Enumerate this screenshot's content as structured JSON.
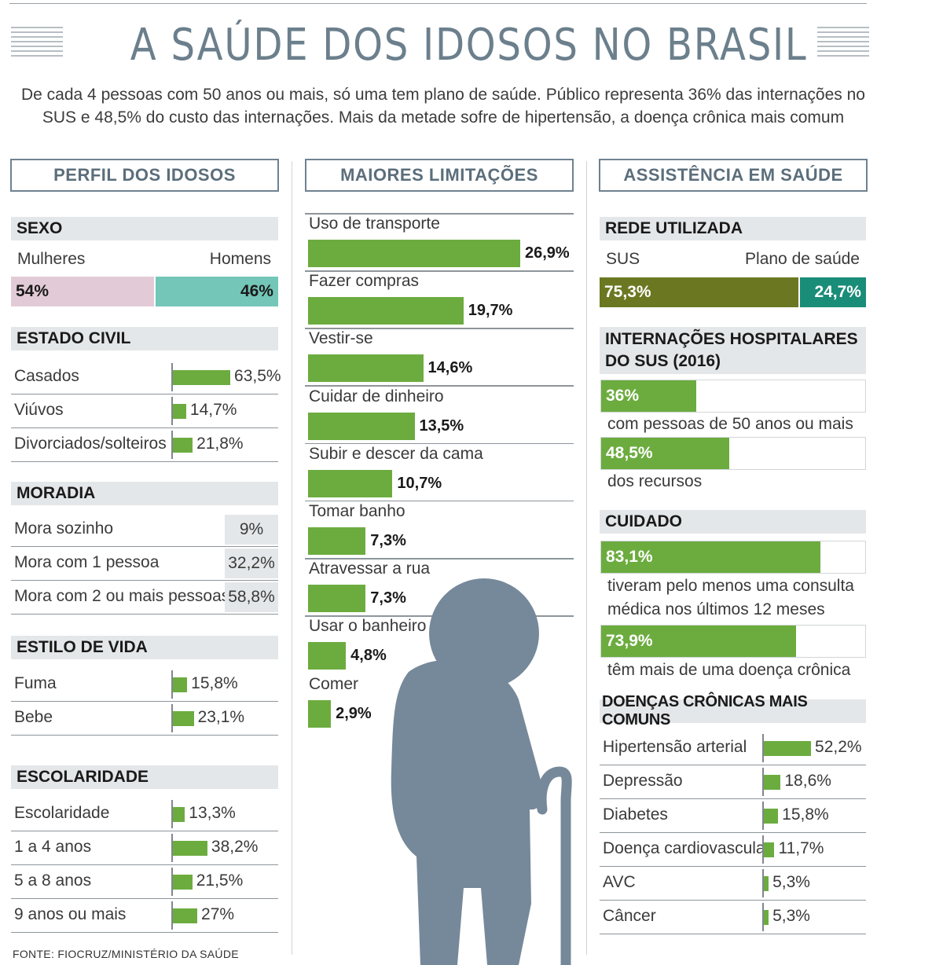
{
  "header": {
    "title": "A SAÚDE DOS IDOSOS NO BRASIL",
    "subtitle_line1": "De cada 4 pessoas com 50 anos ou mais, só uma tem plano de saúde. Público representa 36% das internações no",
    "subtitle_line2": "SUS e 48,5% do custo das internações. Mais da metade sofre de hipertensão, a doença crônica mais comum"
  },
  "sections": {
    "perfil": "PERFIL DOS IDOSOS",
    "limitacoes": "MAIORES LIMITAÇÕES",
    "assistencia": "ASSISTÊNCIA EM SAÚDE"
  },
  "colors": {
    "bar": "#6cac3f",
    "women": "#e2cbd6",
    "men": "#73c6b8",
    "sus": "#6b7821",
    "plano": "#198d78",
    "figure": "#76899a"
  },
  "chart_data": [
    {
      "type": "bar",
      "title": "SEXO",
      "categories": [
        "Mulheres",
        "Homens"
      ],
      "labels": [
        "54%",
        "46%"
      ],
      "values": [
        54,
        46
      ]
    },
    {
      "type": "bar",
      "title": "ESTADO CIVIL",
      "categories": [
        "Casados",
        "Viúvos",
        "Divorciados/solteiros"
      ],
      "labels": [
        "63,5%",
        "14,7%",
        "21,8%"
      ],
      "values": [
        63.5,
        14.7,
        21.8
      ]
    },
    {
      "type": "table",
      "title": "MORADIA",
      "categories": [
        "Mora sozinho",
        "Mora com 1 pessoa",
        "Mora com 2 ou mais pessoas"
      ],
      "labels": [
        "9%",
        "32,2%",
        "58,8%"
      ],
      "values": [
        9,
        32.2,
        58.8
      ]
    },
    {
      "type": "bar",
      "title": "ESTILO DE VIDA",
      "categories": [
        "Fuma",
        "Bebe"
      ],
      "labels": [
        "15,8%",
        "23,1%"
      ],
      "values": [
        15.8,
        23.1
      ]
    },
    {
      "type": "bar",
      "title": "ESCOLARIDADE",
      "categories": [
        "Escolaridade",
        "1 a 4 anos",
        "5 a 8 anos",
        "9 anos ou mais"
      ],
      "labels": [
        "13,3%",
        "38,2%",
        "21,5%",
        "27%"
      ],
      "values": [
        13.3,
        38.2,
        21.5,
        27
      ]
    },
    {
      "type": "bar",
      "title": "MAIORES LIMITAÇÕES",
      "categories": [
        "Uso de transporte",
        "Fazer compras",
        "Vestir-se",
        "Cuidar de dinheiro",
        "Subir e descer da cama",
        "Tomar banho",
        "Atravessar a rua",
        "Usar o banheiro",
        "Comer"
      ],
      "labels": [
        "26,9%",
        "19,7%",
        "14,6%",
        "13,5%",
        "10,7%",
        "7,3%",
        "7,3%",
        "4,8%",
        "2,9%"
      ],
      "values": [
        26.9,
        19.7,
        14.6,
        13.5,
        10.7,
        7.3,
        7.3,
        4.8,
        2.9
      ]
    },
    {
      "type": "bar",
      "title": "REDE UTILIZADA",
      "categories": [
        "SUS",
        "Plano de saúde"
      ],
      "labels": [
        "75,3%",
        "24,7%"
      ],
      "values": [
        75.3,
        24.7
      ]
    },
    {
      "type": "bar",
      "title": "INTERNAÇÕES HOSPITALARES DO SUS (2016)",
      "categories": [
        "com pessoas de 50 anos ou mais",
        "dos recursos"
      ],
      "labels": [
        "36%",
        "48,5%"
      ],
      "values": [
        36,
        48.5
      ]
    },
    {
      "type": "bar",
      "title": "CUIDADO",
      "categories": [
        "tiveram pelo menos uma consulta médica nos últimos 12 meses",
        "têm mais de uma doença crônica"
      ],
      "labels": [
        "83,1%",
        "73,9%"
      ],
      "values": [
        83.1,
        73.9
      ]
    },
    {
      "type": "bar",
      "title": "DOENÇAS CRÔNICAS MAIS COMUNS",
      "categories": [
        "Hipertensão arterial",
        "Depressão",
        "Diabetes",
        "Doença cardiovascular",
        "AVC",
        "Câncer"
      ],
      "labels": [
        "52,2%",
        "18,6%",
        "15,8%",
        "11,7%",
        "5,3%",
        "5,3%"
      ],
      "values": [
        52.2,
        18.6,
        15.8,
        11.7,
        5.3,
        5.3
      ]
    }
  ],
  "internacoes_title_line1": "INTERNAÇÕES HOSPITALARES",
  "internacoes_title_line2": "DO SUS (2016)",
  "cuidado_desc1_line1": "tiveram pelo menos uma consulta",
  "cuidado_desc1_line2": "médica nos últimos 12 meses",
  "source": "FONTE: FIOCRUZ/MINISTÉRIO DA SAÚDE"
}
